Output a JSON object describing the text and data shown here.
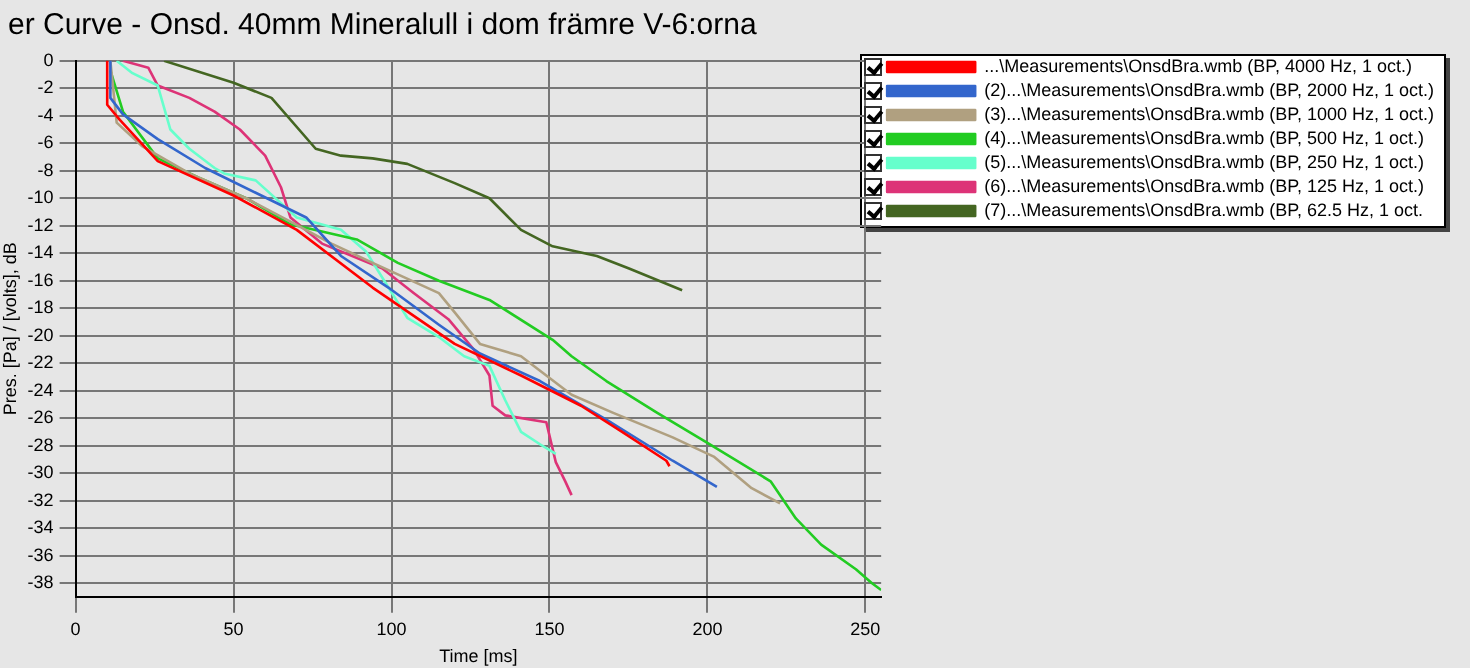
{
  "chart_data": {
    "type": "line",
    "title": "er Curve - Onsd. 40mm Mineralull i dom främre V-6:orna",
    "xlabel": "Time [ms]",
    "ylabel": "Pres. [Pa] / [volts], dB",
    "xlim": [
      0,
      255
    ],
    "xticks": [
      0,
      50,
      100,
      150,
      200,
      250
    ],
    "ylim": [
      -39,
      0
    ],
    "yticks": [
      0,
      -2,
      -4,
      -6,
      -8,
      -10,
      -12,
      -14,
      -16,
      -18,
      -20,
      -22,
      -24,
      -26,
      -28,
      -30,
      -32,
      -34,
      -36,
      -38
    ],
    "grid": true,
    "legend": "top right",
    "marker": "none",
    "line_style": "solid",
    "series": [
      {
        "name": "...\\Measurements\\OnsdBra.wmb (BP, 4000 Hz, 1 oct.)",
        "color": "#ff0000",
        "x": [
          10,
          10,
          14,
          26,
          50,
          70,
          94,
          120,
          141,
          160,
          173,
          187,
          188
        ],
        "values": [
          0,
          -3.2,
          -4.3,
          -7.3,
          -9.8,
          -12.3,
          -16.5,
          -20.6,
          -22.9,
          -25.1,
          -27,
          -29.1,
          -29.5
        ]
      },
      {
        "name": "(2)...\\Measurements\\OnsdBra.wmb (BP, 2000 Hz, 1 oct.)",
        "color": "#3366cc",
        "x": [
          11,
          11,
          15,
          26,
          41,
          57,
          73,
          84,
          99,
          115,
          128,
          147,
          168,
          189,
          203
        ],
        "values": [
          0,
          -2.7,
          -3.9,
          -5.7,
          -7.8,
          -9.6,
          -11.4,
          -14.2,
          -16.5,
          -19.2,
          -21.3,
          -23.3,
          -26.1,
          -29.1,
          -31
        ]
      },
      {
        "name": "(3)...\\Measurements\\OnsdBra.wmb (BP, 1000 Hz, 1 oct.)",
        "color": "#b0a080",
        "x": [
          11,
          13,
          21,
          36,
          54,
          68,
          81,
          94,
          115,
          120,
          128,
          141,
          157,
          170,
          189,
          202,
          214,
          223
        ],
        "values": [
          0,
          -4.5,
          -6.2,
          -8.2,
          -10,
          -11.7,
          -13.3,
          -14.7,
          -16.9,
          -18.3,
          -20.6,
          -21.5,
          -24.3,
          -25.6,
          -27.4,
          -28.8,
          -31.1,
          -32.2
        ]
      },
      {
        "name": "(4)...\\Measurements\\OnsdBra.wmb (BP, 500 Hz, 1 oct.)",
        "color": "#22cc22",
        "x": [
          11,
          15,
          26,
          39,
          54,
          68,
          89,
          102,
          115,
          131,
          151,
          157,
          168,
          184,
          200,
          220,
          228,
          236,
          247,
          252,
          255
        ],
        "values": [
          -0.7,
          -3.7,
          -7.1,
          -8.5,
          -10,
          -11.9,
          -13,
          -14.7,
          -16,
          -17.4,
          -20.3,
          -21.5,
          -23.3,
          -25.6,
          -27.8,
          -30.6,
          -33.3,
          -35.2,
          -37,
          -38,
          -38.5
        ]
      },
      {
        "name": "(5)...\\Measurements\\OnsdBra.wmb (BP, 250 Hz, 1 oct.)",
        "color": "#66ffcc",
        "x": [
          13,
          18,
          26,
          30,
          36,
          44,
          47,
          57,
          70,
          84,
          92,
          105,
          115,
          123,
          131,
          136,
          141,
          147,
          152
        ],
        "values": [
          0,
          -0.9,
          -1.8,
          -5,
          -6.4,
          -7.8,
          -8.2,
          -8.7,
          -11.4,
          -12.3,
          -13.9,
          -18.7,
          -20.1,
          -21.5,
          -22.2,
          -24.7,
          -27,
          -27.9,
          -28.6
        ]
      },
      {
        "name": "(6)...\\Measurements\\OnsdBra.wmb (BP, 125 Hz, 1 oct.)",
        "color": "#dd3377",
        "x": [
          15,
          23,
          26,
          36,
          44,
          52,
          60,
          65,
          68,
          78,
          97,
          107,
          118,
          126,
          131,
          132,
          136,
          149,
          152,
          155,
          157
        ],
        "values": [
          0,
          -0.5,
          -1.8,
          -2.7,
          -3.7,
          -5,
          -6.9,
          -9.2,
          -11.4,
          -13.3,
          -15.1,
          -16.9,
          -18.8,
          -21,
          -22.9,
          -25.1,
          -25.8,
          -26.3,
          -29.2,
          -30.6,
          -31.6
        ]
      },
      {
        "name": "(7)...\\Measurements\\OnsdBra.wmb (BP, 62.5 Hz, 1 oct.",
        "color": "#446622",
        "x": [
          28,
          50,
          62,
          76,
          84,
          94,
          105,
          120,
          131,
          141,
          151,
          165,
          175,
          192
        ],
        "values": [
          0,
          -1.6,
          -2.7,
          -6.4,
          -6.9,
          -7.1,
          -7.5,
          -8.9,
          -10,
          -12.3,
          -13.5,
          -14.2,
          -15.1,
          -16.7
        ]
      }
    ]
  }
}
